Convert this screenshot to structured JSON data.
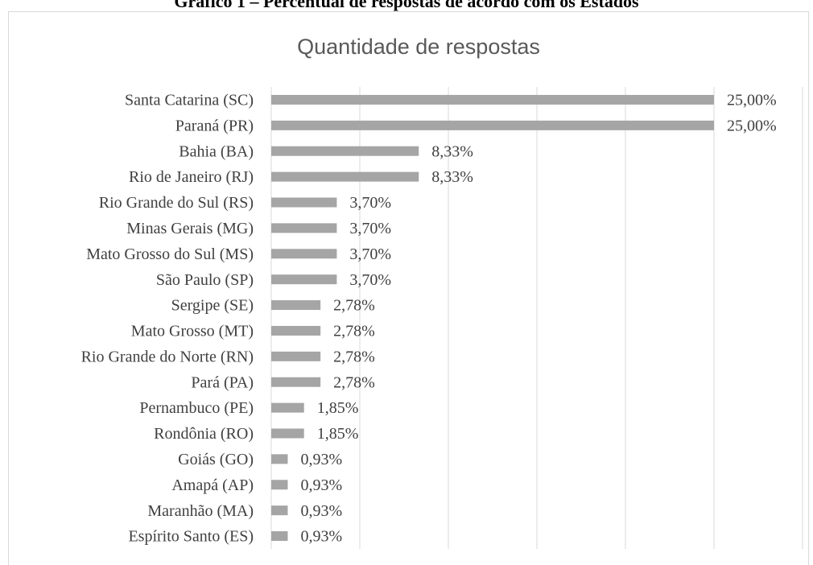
{
  "chart_data": {
    "type": "barh",
    "caption": "Gráfico 1 – Percentual de respostas de acordo com os Estados",
    "title": "Quantidade de respostas",
    "categories": [
      "Santa Catarina (SC)",
      "Paraná (PR)",
      "Bahia (BA)",
      "Rio de Janeiro (RJ)",
      "Rio Grande do Sul (RS)",
      "Minas Gerais (MG)",
      "Mato Grosso do Sul (MS)",
      "São Paulo (SP)",
      "Sergipe (SE)",
      "Mato Grosso (MT)",
      "Rio Grande do Norte (RN)",
      "Pará (PA)",
      "Pernambuco (PE)",
      "Rondônia (RO)",
      "Goiás (GO)",
      "Amapá (AP)",
      "Maranhão (MA)",
      "Espírito Santo (ES)"
    ],
    "values": [
      25,
      25,
      8.33,
      8.33,
      3.7,
      3.7,
      3.7,
      3.7,
      2.78,
      2.78,
      2.78,
      2.78,
      1.85,
      1.85,
      0.93,
      0.93,
      0.93,
      0.93
    ],
    "value_labels": [
      "25,00%",
      "25,00%",
      "8,33%",
      "8,33%",
      "3,70%",
      "3,70%",
      "3,70%",
      "3,70%",
      "2,78%",
      "2,78%",
      "2,78%",
      "2,78%",
      "1,85%",
      "1,85%",
      "0,93%",
      "0,93%",
      "0,93%",
      "0,93%"
    ],
    "color": "#a5a5a5",
    "xlim": [
      0,
      30
    ],
    "xticks": [
      0,
      5,
      10,
      15,
      20,
      25,
      30
    ],
    "grid": true
  }
}
